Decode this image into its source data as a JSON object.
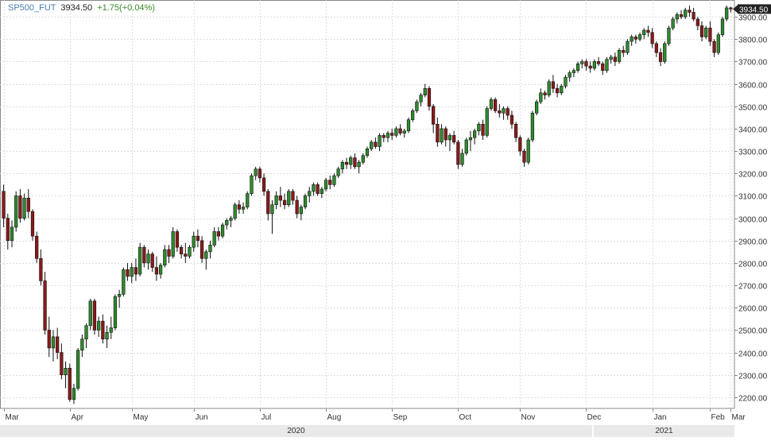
{
  "header": {
    "symbol": "SP500_FUT",
    "last": "3934.50",
    "change": "+1.75(+0.04%)"
  },
  "colors": {
    "up": "#2e8b2e",
    "down": "#8b1a1a",
    "wick": "#111111",
    "grid": "#dedede",
    "axis": "#888888"
  },
  "chart_data": {
    "type": "candlestick",
    "title": "",
    "xlabel": "",
    "ylabel": "",
    "ylim": [
      2150,
      3975
    ],
    "y_ticks": [
      "2200.00",
      "2300.00",
      "2400.00",
      "2500.00",
      "2600.00",
      "2700.00",
      "2800.00",
      "2900.00",
      "3000.00",
      "3100.00",
      "3200.00",
      "3300.00",
      "3400.00",
      "3500.00",
      "3600.00",
      "3700.00",
      "3800.00",
      "3900.00"
    ],
    "x_ticks": [
      "Mar",
      "Apr",
      "May",
      "Jun",
      "Jul",
      "Aug",
      "Sep",
      "Oct",
      "Nov",
      "Dec",
      "Jan",
      "Feb",
      "Mar"
    ],
    "years": [
      "2020",
      "2021"
    ],
    "last_price_label": "3934.50",
    "grid": true,
    "series": [
      {
        "values": [
          [
            3120,
            3150,
            2960,
            3000
          ],
          [
            3000,
            3020,
            2860,
            2900
          ],
          [
            2900,
            2990,
            2870,
            2960
          ],
          [
            2960,
            3120,
            2940,
            3100
          ],
          [
            3100,
            3130,
            2980,
            3000
          ],
          [
            3000,
            3110,
            2990,
            3090
          ],
          [
            3090,
            3130,
            3000,
            3030
          ],
          [
            3030,
            3040,
            2900,
            2920
          ],
          [
            2920,
            2940,
            2800,
            2820
          ],
          [
            2820,
            2860,
            2700,
            2720
          ],
          [
            2720,
            2760,
            2480,
            2500
          ],
          [
            2500,
            2560,
            2380,
            2420
          ],
          [
            2420,
            2500,
            2360,
            2470
          ],
          [
            2470,
            2510,
            2370,
            2400
          ],
          [
            2400,
            2440,
            2280,
            2300
          ],
          [
            2300,
            2360,
            2240,
            2330
          ],
          [
            2330,
            2350,
            2180,
            2190
          ],
          [
            2190,
            2260,
            2170,
            2240
          ],
          [
            2240,
            2420,
            2230,
            2410
          ],
          [
            2410,
            2480,
            2380,
            2460
          ],
          [
            2460,
            2530,
            2420,
            2520
          ],
          [
            2520,
            2640,
            2500,
            2630
          ],
          [
            2630,
            2640,
            2480,
            2500
          ],
          [
            2500,
            2560,
            2470,
            2540
          ],
          [
            2540,
            2570,
            2440,
            2460
          ],
          [
            2460,
            2520,
            2420,
            2490
          ],
          [
            2490,
            2560,
            2460,
            2510
          ],
          [
            2510,
            2660,
            2500,
            2650
          ],
          [
            2650,
            2680,
            2600,
            2660
          ],
          [
            2660,
            2780,
            2650,
            2770
          ],
          [
            2770,
            2800,
            2720,
            2740
          ],
          [
            2740,
            2800,
            2710,
            2780
          ],
          [
            2780,
            2820,
            2720,
            2750
          ],
          [
            2750,
            2890,
            2740,
            2870
          ],
          [
            2870,
            2880,
            2780,
            2800
          ],
          [
            2800,
            2860,
            2770,
            2840
          ],
          [
            2840,
            2850,
            2760,
            2780
          ],
          [
            2780,
            2830,
            2720,
            2750
          ],
          [
            2750,
            2800,
            2730,
            2790
          ],
          [
            2790,
            2880,
            2780,
            2860
          ],
          [
            2860,
            2880,
            2800,
            2830
          ],
          [
            2830,
            2960,
            2820,
            2940
          ],
          [
            2940,
            2950,
            2850,
            2870
          ],
          [
            2870,
            2880,
            2820,
            2840
          ],
          [
            2840,
            2890,
            2800,
            2830
          ],
          [
            2830,
            2880,
            2820,
            2870
          ],
          [
            2870,
            2940,
            2850,
            2920
          ],
          [
            2920,
            2950,
            2870,
            2900
          ],
          [
            2900,
            2920,
            2800,
            2820
          ],
          [
            2820,
            2860,
            2770,
            2850
          ],
          [
            2850,
            2900,
            2820,
            2880
          ],
          [
            2880,
            2960,
            2870,
            2940
          ],
          [
            2940,
            2960,
            2900,
            2920
          ],
          [
            2920,
            2980,
            2910,
            2970
          ],
          [
            2970,
            3000,
            2950,
            2990
          ],
          [
            2990,
            3010,
            2960,
            3000
          ],
          [
            3000,
            3070,
            2990,
            3060
          ],
          [
            3060,
            3080,
            3020,
            3040
          ],
          [
            3040,
            3070,
            3020,
            3050
          ],
          [
            3050,
            3120,
            3040,
            3110
          ],
          [
            3110,
            3200,
            3100,
            3190
          ],
          [
            3190,
            3230,
            3170,
            3220
          ],
          [
            3220,
            3230,
            3160,
            3180
          ],
          [
            3180,
            3200,
            3100,
            3120
          ],
          [
            3120,
            3130,
            2990,
            3020
          ],
          [
            3020,
            3080,
            2930,
            3060
          ],
          [
            3060,
            3120,
            3040,
            3100
          ],
          [
            3100,
            3140,
            3050,
            3080
          ],
          [
            3080,
            3110,
            3040,
            3060
          ],
          [
            3060,
            3130,
            3050,
            3120
          ],
          [
            3120,
            3130,
            3060,
            3080
          ],
          [
            3080,
            3100,
            3000,
            3020
          ],
          [
            3020,
            3060,
            2990,
            3050
          ],
          [
            3050,
            3110,
            3040,
            3100
          ],
          [
            3100,
            3140,
            3070,
            3120
          ],
          [
            3120,
            3160,
            3100,
            3150
          ],
          [
            3150,
            3160,
            3100,
            3110
          ],
          [
            3110,
            3140,
            3090,
            3130
          ],
          [
            3130,
            3180,
            3120,
            3170
          ],
          [
            3170,
            3190,
            3130,
            3150
          ],
          [
            3150,
            3200,
            3140,
            3190
          ],
          [
            3190,
            3230,
            3180,
            3220
          ],
          [
            3220,
            3260,
            3200,
            3250
          ],
          [
            3250,
            3270,
            3220,
            3240
          ],
          [
            3240,
            3280,
            3220,
            3270
          ],
          [
            3270,
            3290,
            3220,
            3230
          ],
          [
            3230,
            3260,
            3200,
            3250
          ],
          [
            3250,
            3290,
            3240,
            3280
          ],
          [
            3280,
            3320,
            3270,
            3310
          ],
          [
            3310,
            3350,
            3300,
            3340
          ],
          [
            3340,
            3360,
            3310,
            3320
          ],
          [
            3320,
            3380,
            3300,
            3370
          ],
          [
            3370,
            3380,
            3340,
            3360
          ],
          [
            3360,
            3390,
            3340,
            3380
          ],
          [
            3380,
            3400,
            3350,
            3370
          ],
          [
            3370,
            3410,
            3360,
            3400
          ],
          [
            3400,
            3420,
            3370,
            3380
          ],
          [
            3380,
            3400,
            3360,
            3390
          ],
          [
            3390,
            3450,
            3380,
            3440
          ],
          [
            3440,
            3490,
            3430,
            3480
          ],
          [
            3480,
            3530,
            3470,
            3520
          ],
          [
            3520,
            3560,
            3500,
            3550
          ],
          [
            3550,
            3600,
            3540,
            3580
          ],
          [
            3580,
            3590,
            3480,
            3500
          ],
          [
            3500,
            3510,
            3380,
            3420
          ],
          [
            3420,
            3450,
            3320,
            3340
          ],
          [
            3340,
            3420,
            3330,
            3400
          ],
          [
            3400,
            3410,
            3320,
            3350
          ],
          [
            3350,
            3380,
            3300,
            3370
          ],
          [
            3370,
            3390,
            3330,
            3340
          ],
          [
            3340,
            3350,
            3220,
            3240
          ],
          [
            3240,
            3310,
            3230,
            3290
          ],
          [
            3290,
            3360,
            3280,
            3350
          ],
          [
            3350,
            3390,
            3300,
            3360
          ],
          [
            3360,
            3400,
            3330,
            3390
          ],
          [
            3390,
            3430,
            3370,
            3420
          ],
          [
            3420,
            3440,
            3350,
            3370
          ],
          [
            3370,
            3500,
            3360,
            3490
          ],
          [
            3490,
            3540,
            3480,
            3530
          ],
          [
            3530,
            3540,
            3470,
            3480
          ],
          [
            3480,
            3510,
            3450,
            3470
          ],
          [
            3470,
            3500,
            3440,
            3490
          ],
          [
            3490,
            3500,
            3440,
            3460
          ],
          [
            3460,
            3480,
            3400,
            3420
          ],
          [
            3420,
            3430,
            3340,
            3360
          ],
          [
            3360,
            3370,
            3280,
            3300
          ],
          [
            3300,
            3310,
            3230,
            3250
          ],
          [
            3250,
            3360,
            3240,
            3350
          ],
          [
            3350,
            3480,
            3340,
            3470
          ],
          [
            3470,
            3530,
            3460,
            3520
          ],
          [
            3520,
            3580,
            3510,
            3560
          ],
          [
            3560,
            3570,
            3530,
            3550
          ],
          [
            3550,
            3620,
            3540,
            3610
          ],
          [
            3610,
            3640,
            3560,
            3580
          ],
          [
            3580,
            3600,
            3540,
            3560
          ],
          [
            3560,
            3600,
            3550,
            3590
          ],
          [
            3590,
            3640,
            3580,
            3630
          ],
          [
            3630,
            3660,
            3610,
            3650
          ],
          [
            3650,
            3670,
            3630,
            3660
          ],
          [
            3660,
            3700,
            3650,
            3690
          ],
          [
            3690,
            3710,
            3670,
            3700
          ],
          [
            3700,
            3710,
            3660,
            3680
          ],
          [
            3680,
            3700,
            3650,
            3670
          ],
          [
            3670,
            3710,
            3660,
            3700
          ],
          [
            3700,
            3720,
            3680,
            3690
          ],
          [
            3690,
            3700,
            3640,
            3660
          ],
          [
            3660,
            3720,
            3650,
            3710
          ],
          [
            3710,
            3730,
            3690,
            3720
          ],
          [
            3720,
            3740,
            3680,
            3700
          ],
          [
            3700,
            3760,
            3690,
            3750
          ],
          [
            3750,
            3770,
            3720,
            3740
          ],
          [
            3740,
            3800,
            3730,
            3790
          ],
          [
            3790,
            3820,
            3770,
            3810
          ],
          [
            3810,
            3820,
            3780,
            3800
          ],
          [
            3800,
            3830,
            3790,
            3820
          ],
          [
            3820,
            3850,
            3800,
            3840
          ],
          [
            3840,
            3860,
            3810,
            3830
          ],
          [
            3830,
            3850,
            3760,
            3780
          ],
          [
            3780,
            3790,
            3720,
            3740
          ],
          [
            3740,
            3760,
            3680,
            3700
          ],
          [
            3700,
            3790,
            3690,
            3780
          ],
          [
            3780,
            3860,
            3770,
            3850
          ],
          [
            3850,
            3900,
            3840,
            3890
          ],
          [
            3890,
            3920,
            3870,
            3910
          ],
          [
            3910,
            3930,
            3890,
            3900
          ],
          [
            3900,
            3940,
            3890,
            3930
          ],
          [
            3930,
            3950,
            3900,
            3920
          ],
          [
            3920,
            3940,
            3880,
            3890
          ],
          [
            3890,
            3900,
            3840,
            3860
          ],
          [
            3860,
            3880,
            3790,
            3810
          ],
          [
            3810,
            3860,
            3800,
            3850
          ],
          [
            3850,
            3880,
            3770,
            3790
          ],
          [
            3790,
            3800,
            3720,
            3740
          ],
          [
            3740,
            3830,
            3730,
            3820
          ],
          [
            3820,
            3900,
            3810,
            3890
          ],
          [
            3890,
            3950,
            3880,
            3940
          ],
          [
            3940,
            3945,
            3920,
            3934.5
          ]
        ]
      }
    ]
  }
}
